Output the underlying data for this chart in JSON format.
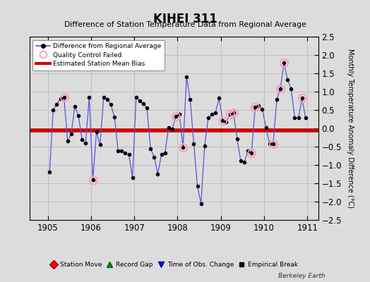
{
  "title": "KIHEI 311",
  "subtitle": "Difference of Station Temperature Data from Regional Average",
  "ylabel": "Monthly Temperature Anomaly Difference (°C)",
  "xlabel_years": [
    1905,
    1906,
    1907,
    1908,
    1909,
    1910,
    1911
  ],
  "xlim": [
    1904.58,
    1911.25
  ],
  "ylim": [
    -2.5,
    2.5
  ],
  "yticks": [
    -2.5,
    -2.0,
    -1.5,
    -1.0,
    -0.5,
    0.0,
    0.5,
    1.0,
    1.5,
    2.0,
    2.5
  ],
  "bias_line": -0.05,
  "background_color": "#dcdcdc",
  "watermark": "Berkeley Earth",
  "x_data": [
    1905.042,
    1905.125,
    1905.208,
    1905.292,
    1905.375,
    1905.458,
    1905.542,
    1905.625,
    1905.708,
    1905.792,
    1905.875,
    1905.958,
    1906.042,
    1906.125,
    1906.208,
    1906.292,
    1906.375,
    1906.458,
    1906.542,
    1906.625,
    1906.708,
    1906.792,
    1906.875,
    1906.958,
    1907.042,
    1907.125,
    1907.208,
    1907.292,
    1907.375,
    1907.458,
    1907.542,
    1907.625,
    1907.708,
    1907.792,
    1907.875,
    1907.958,
    1908.042,
    1908.125,
    1908.208,
    1908.292,
    1908.375,
    1908.458,
    1908.542,
    1908.625,
    1908.708,
    1908.792,
    1908.875,
    1908.958,
    1909.042,
    1909.125,
    1909.208,
    1909.292,
    1909.375,
    1909.458,
    1909.542,
    1909.625,
    1909.708,
    1909.792,
    1909.875,
    1909.958,
    1910.042,
    1910.125,
    1910.208,
    1910.292,
    1910.375,
    1910.458,
    1910.542,
    1910.625,
    1910.708,
    1910.792,
    1910.875,
    1910.958
  ],
  "y_data": [
    -1.2,
    0.5,
    0.65,
    0.8,
    0.85,
    -0.35,
    -0.15,
    0.6,
    0.35,
    -0.3,
    -0.4,
    0.85,
    -1.4,
    -0.1,
    -0.45,
    0.85,
    0.78,
    0.65,
    0.3,
    -0.62,
    -0.62,
    -0.68,
    -0.72,
    -1.35,
    0.85,
    0.75,
    0.68,
    0.55,
    -0.55,
    -0.78,
    -1.25,
    -0.72,
    -0.68,
    0.02,
    -0.02,
    0.32,
    0.38,
    -0.52,
    1.4,
    0.78,
    -0.42,
    -1.58,
    -2.05,
    -0.48,
    0.28,
    0.38,
    0.42,
    0.82,
    0.22,
    0.18,
    0.38,
    0.42,
    -0.28,
    -0.88,
    -0.92,
    -0.62,
    -0.68,
    0.58,
    0.62,
    0.52,
    0.02,
    -0.42,
    -0.42,
    0.78,
    1.08,
    1.78,
    1.32,
    1.08,
    0.28,
    0.28,
    0.82,
    0.28
  ],
  "qc_failed_indices": [
    4,
    12,
    35,
    37,
    48,
    50,
    51,
    56,
    57,
    62,
    64,
    65,
    70
  ],
  "line_color": "#5555dd",
  "dot_color": "#000000",
  "bias_color": "#cc0000",
  "qc_color": "#ff99bb",
  "legend_bg": "#ffffff",
  "grid_color": "#bbbbbb"
}
